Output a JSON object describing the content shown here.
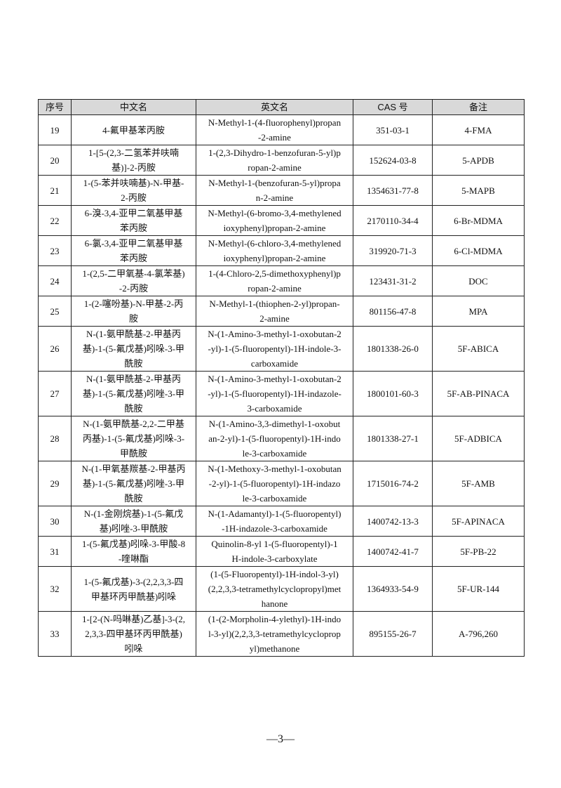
{
  "table": {
    "headers": [
      "序号",
      "中文名",
      "英文名",
      "CAS 号",
      "备注"
    ],
    "rows": [
      {
        "no": "19",
        "cn": [
          "4-氟甲基苯丙胺"
        ],
        "en": [
          "N-Methyl-1-(4-fluorophenyl)propan",
          "-2-amine"
        ],
        "cas": "351-03-1",
        "note": "4-FMA"
      },
      {
        "no": "20",
        "cn": [
          "1-[5-(2,3-二氢苯并呋喃",
          "基)]-2-丙胺"
        ],
        "en": [
          "1-(2,3-Dihydro-1-benzofuran-5-yl)p",
          "ropan-2-amine"
        ],
        "cas": "152624-03-8",
        "note": "5-APDB"
      },
      {
        "no": "21",
        "cn": [
          "1-(5-苯并呋喃基)-N-甲基-",
          "2-丙胺"
        ],
        "en": [
          "N-Methyl-1-(benzofuran-5-yl)propa",
          "n-2-amine"
        ],
        "cas": "1354631-77-8",
        "note": "5-MAPB"
      },
      {
        "no": "22",
        "cn": [
          "6-溴-3,4-亚甲二氧基甲基",
          "苯丙胺"
        ],
        "en": [
          "N-Methyl-(6-bromo-3,4-methylened",
          "ioxyphenyl)propan-2-amine"
        ],
        "cas": "2170110-34-4",
        "note": "6-Br-MDMA"
      },
      {
        "no": "23",
        "cn": [
          "6-氯-3,4-亚甲二氧基甲基",
          "苯丙胺"
        ],
        "en": [
          "N-Methyl-(6-chloro-3,4-methylened",
          "ioxyphenyl)propan-2-amine"
        ],
        "cas": "319920-71-3",
        "note": "6-Cl-MDMA"
      },
      {
        "no": "24",
        "cn": [
          "1-(2,5-二甲氧基-4-氯苯基)",
          "-2-丙胺"
        ],
        "en": [
          "1-(4-Chloro-2,5-dimethoxyphenyl)p",
          "ropan-2-amine"
        ],
        "cas": "123431-31-2",
        "note": "DOC"
      },
      {
        "no": "25",
        "cn": [
          "1-(2-噻吩基)-N-甲基-2-丙",
          "胺"
        ],
        "en": [
          "N-Methyl-1-(thiophen-2-yl)propan-",
          "2-amine"
        ],
        "cas": "801156-47-8",
        "note": "MPA"
      },
      {
        "no": "26",
        "cn": [
          "N-(1-氨甲酰基-2-甲基丙",
          "基)-1-(5-氟戊基)吲哚-3-甲",
          "酰胺"
        ],
        "en": [
          "N-(1-Amino-3-methyl-1-oxobutan-2",
          "-yl)-1-(5-fluoropentyl)-1H-indole-3-",
          "carboxamide"
        ],
        "cas": "1801338-26-0",
        "note": "5F-ABICA"
      },
      {
        "no": "27",
        "cn": [
          "N-(1-氨甲酰基-2-甲基丙",
          "基)-1-(5-氟戊基)吲唑-3-甲",
          "酰胺"
        ],
        "en": [
          "N-(1-Amino-3-methyl-1-oxobutan-2",
          "-yl)-1-(5-fluoropentyl)-1H-indazole-",
          "3-carboxamide"
        ],
        "cas": "1800101-60-3",
        "note": "5F-AB-PINACA"
      },
      {
        "no": "28",
        "cn": [
          "N-(1-氨甲酰基-2,2-二甲基",
          "丙基)-1-(5-氟戊基)吲哚-3-",
          "甲酰胺"
        ],
        "en": [
          "N-(1-Amino-3,3-dimethyl-1-oxobut",
          "an-2-yl)-1-(5-fluoropentyl)-1H-indo",
          "le-3-carboxamide"
        ],
        "cas": "1801338-27-1",
        "note": "5F-ADBICA"
      },
      {
        "no": "29",
        "cn": [
          "N-(1-甲氧基羰基-2-甲基丙",
          "基)-1-(5-氟戊基)吲唑-3-甲",
          "酰胺"
        ],
        "en": [
          "N-(1-Methoxy-3-methyl-1-oxobutan",
          "-2-yl)-1-(5-fluoropentyl)-1H-indazo",
          "le-3-carboxamide"
        ],
        "cas": "1715016-74-2",
        "note": "5F-AMB"
      },
      {
        "no": "30",
        "cn": [
          "N-(1-金刚烷基)-1-(5-氟戊",
          "基)吲唑-3-甲酰胺"
        ],
        "en": [
          "N-(1-Adamantyl)-1-(5-fluoropentyl)",
          "-1H-indazole-3-carboxamide"
        ],
        "cas": "1400742-13-3",
        "note": "5F-APINACA"
      },
      {
        "no": "31",
        "cn": [
          "1-(5-氟戊基)吲哚-3-甲酸-8",
          "-喹啉酯"
        ],
        "en": [
          "Quinolin-8-yl  1-(5-fluoropentyl)-1",
          "H-indole-3-carboxylate"
        ],
        "cas": "1400742-41-7",
        "note": "5F-PB-22"
      },
      {
        "no": "32",
        "cn": [
          "1-(5-氟戊基)-3-(2,2,3,3-四",
          "甲基环丙甲酰基)吲哚"
        ],
        "en": [
          "(1-(5-Fluoropentyl)-1H-indol-3-yl)",
          "(2,2,3,3-tetramethylcyclopropyl)met",
          "hanone"
        ],
        "cas": "1364933-54-9",
        "note": "5F-UR-144"
      },
      {
        "no": "33",
        "cn": [
          "1-[2-(N-吗啉基)乙基]-3-(2,",
          "2,3,3-四甲基环丙甲酰基)",
          "吲哚"
        ],
        "en": [
          "(1-(2-Morpholin-4-ylethyl)-1H-indo",
          "l-3-yl)(2,2,3,3-tetramethylcycloprop",
          "yl)methanone"
        ],
        "cas": "895155-26-7",
        "note": "A-796,260"
      }
    ]
  },
  "page_number": "—3—"
}
